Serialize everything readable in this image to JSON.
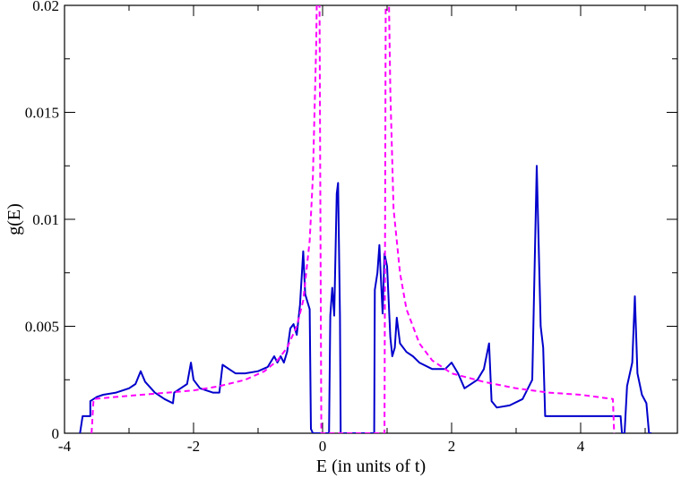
{
  "chart_data": {
    "type": "line",
    "title": "",
    "xlabel": "E (in units of t)",
    "ylabel": "g(E)",
    "xlim": [
      -4,
      5.5
    ],
    "ylim": [
      0,
      0.02
    ],
    "x_ticks": [
      -4,
      -2,
      0,
      2,
      4
    ],
    "x_tick_labels": [
      "-4",
      "-2",
      "0",
      "2",
      "4"
    ],
    "y_ticks": [
      0,
      0.005,
      0.01,
      0.015,
      0.02
    ],
    "y_tick_labels": [
      "0",
      "0.005",
      "0.01",
      "0.015",
      "0.02"
    ],
    "grid": false,
    "legend": "none",
    "series": [
      {
        "color": "#0000cc",
        "style": "solid",
        "points": [
          [
            -3.76,
            0
          ],
          [
            -3.72,
            0.0008
          ],
          [
            -3.6,
            0.0008
          ],
          [
            -3.6,
            0.0015
          ],
          [
            -3.55,
            0.0016
          ],
          [
            -3.5,
            0.0017
          ],
          [
            -3.4,
            0.0018
          ],
          [
            -3.2,
            0.0019
          ],
          [
            -3.0,
            0.0021
          ],
          [
            -2.9,
            0.0023
          ],
          [
            -2.82,
            0.0029
          ],
          [
            -2.75,
            0.0024
          ],
          [
            -2.6,
            0.0019
          ],
          [
            -2.45,
            0.0016
          ],
          [
            -2.32,
            0.0014
          ],
          [
            -2.3,
            0.0019
          ],
          [
            -2.2,
            0.0021
          ],
          [
            -2.1,
            0.0023
          ],
          [
            -2.04,
            0.0033
          ],
          [
            -2.0,
            0.0025
          ],
          [
            -1.9,
            0.0021
          ],
          [
            -1.8,
            0.002
          ],
          [
            -1.7,
            0.0019
          ],
          [
            -1.6,
            0.0019
          ],
          [
            -1.55,
            0.0032
          ],
          [
            -1.45,
            0.003
          ],
          [
            -1.35,
            0.0028
          ],
          [
            -1.2,
            0.0028
          ],
          [
            -1.0,
            0.0029
          ],
          [
            -0.85,
            0.0031
          ],
          [
            -0.75,
            0.0036
          ],
          [
            -0.7,
            0.0033
          ],
          [
            -0.65,
            0.0036
          ],
          [
            -0.6,
            0.0033
          ],
          [
            -0.55,
            0.0038
          ],
          [
            -0.5,
            0.0049
          ],
          [
            -0.45,
            0.0051
          ],
          [
            -0.4,
            0.0046
          ],
          [
            -0.35,
            0.006
          ],
          [
            -0.3,
            0.0085
          ],
          [
            -0.27,
            0.0065
          ],
          [
            -0.24,
            0.0062
          ],
          [
            -0.2,
            0.0058
          ],
          [
            -0.18,
            0.0002
          ],
          [
            -0.15,
            0
          ],
          [
            0.1,
            0
          ],
          [
            0.12,
            0.0055
          ],
          [
            0.15,
            0.0068
          ],
          [
            0.18,
            0.0055
          ],
          [
            0.22,
            0.0112
          ],
          [
            0.24,
            0.0117
          ],
          [
            0.27,
            0.0055
          ],
          [
            0.28,
            0
          ],
          [
            0.8,
            0
          ],
          [
            0.81,
            0.0067
          ],
          [
            0.85,
            0.0075
          ],
          [
            0.88,
            0.0088
          ],
          [
            0.9,
            0.0075
          ],
          [
            0.93,
            0.0056
          ],
          [
            0.96,
            0.0084
          ],
          [
            1.0,
            0.0078
          ],
          [
            1.05,
            0.0045
          ],
          [
            1.08,
            0.0036
          ],
          [
            1.12,
            0.004
          ],
          [
            1.15,
            0.0054
          ],
          [
            1.2,
            0.0042
          ],
          [
            1.3,
            0.0038
          ],
          [
            1.4,
            0.0036
          ],
          [
            1.5,
            0.0033
          ],
          [
            1.7,
            0.003
          ],
          [
            1.9,
            0.003
          ],
          [
            2.0,
            0.0033
          ],
          [
            2.1,
            0.0028
          ],
          [
            2.2,
            0.0021
          ],
          [
            2.4,
            0.0025
          ],
          [
            2.5,
            0.003
          ],
          [
            2.58,
            0.0042
          ],
          [
            2.62,
            0.0015
          ],
          [
            2.7,
            0.0012
          ],
          [
            2.9,
            0.0013
          ],
          [
            3.1,
            0.0016
          ],
          [
            3.25,
            0.0025
          ],
          [
            3.32,
            0.0125
          ],
          [
            3.38,
            0.005
          ],
          [
            3.42,
            0.004
          ],
          [
            3.45,
            0.0008
          ],
          [
            4.3,
            0.0008
          ],
          [
            4.5,
            0.0008
          ],
          [
            4.62,
            0.0008
          ],
          [
            4.64,
            0
          ],
          [
            4.68,
            0
          ],
          [
            4.72,
            0.0022
          ],
          [
            4.8,
            0.0033
          ],
          [
            4.84,
            0.0064
          ],
          [
            4.88,
            0.0028
          ],
          [
            4.95,
            0.0018
          ],
          [
            5.02,
            0.0014
          ],
          [
            5.06,
            0
          ],
          [
            5.1,
            0
          ]
        ]
      },
      {
        "color": "#ff00ff",
        "style": "dashed",
        "points": [
          [
            -3.58,
            0
          ],
          [
            -3.55,
            0.0016
          ],
          [
            -3.2,
            0.0017
          ],
          [
            -2.8,
            0.0018
          ],
          [
            -2.4,
            0.0019
          ],
          [
            -2.0,
            0.002
          ],
          [
            -1.6,
            0.0022
          ],
          [
            -1.2,
            0.0025
          ],
          [
            -0.9,
            0.0029
          ],
          [
            -0.7,
            0.0034
          ],
          [
            -0.55,
            0.004
          ],
          [
            -0.4,
            0.005
          ],
          [
            -0.3,
            0.0062
          ],
          [
            -0.2,
            0.009
          ],
          [
            -0.15,
            0.012
          ],
          [
            -0.1,
            0.018
          ],
          [
            -0.08,
            0.022
          ],
          [
            -0.05,
            0.022
          ],
          [
            -0.02,
            0
          ],
          [
            0.96,
            0
          ],
          [
            0.98,
            0.022
          ],
          [
            1.02,
            0.022
          ],
          [
            1.05,
            0.016
          ],
          [
            1.1,
            0.0105
          ],
          [
            1.2,
            0.0075
          ],
          [
            1.3,
            0.0058
          ],
          [
            1.5,
            0.0042
          ],
          [
            1.7,
            0.0034
          ],
          [
            2.0,
            0.0028
          ],
          [
            2.5,
            0.0024
          ],
          [
            3.0,
            0.0021
          ],
          [
            3.5,
            0.0019
          ],
          [
            4.0,
            0.0018
          ],
          [
            4.5,
            0.0016
          ],
          [
            4.52,
            0
          ]
        ]
      }
    ]
  }
}
